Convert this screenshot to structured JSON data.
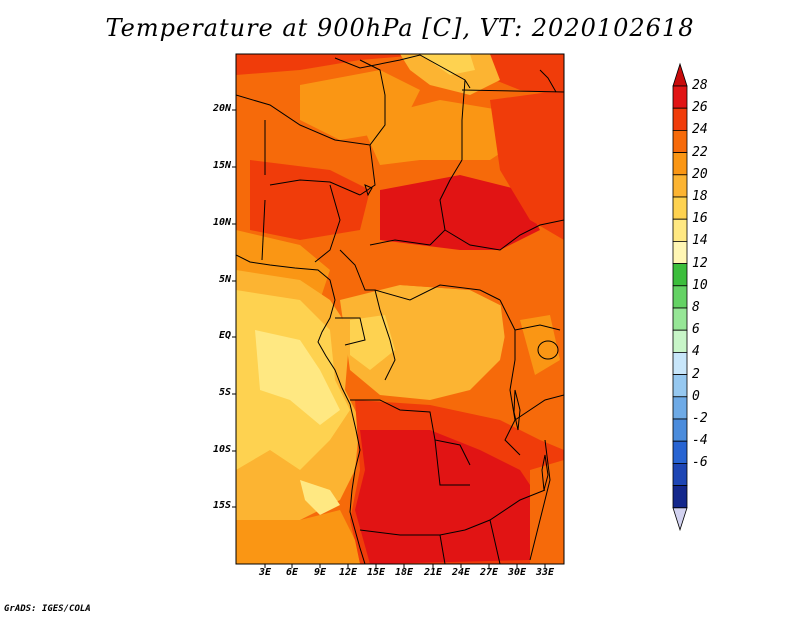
{
  "title": "Temperature at 900hPa [C], VT: 2020102618",
  "credit": "GrADS: IGES/COLA",
  "map": {
    "lat_ticks": [
      "20N",
      "15N",
      "10N",
      "5N",
      "EQ",
      "5S",
      "10S",
      "15S"
    ],
    "lon_ticks": [
      "3E",
      "6E",
      "9E",
      "12E",
      "15E",
      "18E",
      "21E",
      "24E",
      "27E",
      "30E",
      "33E"
    ],
    "lon_range": [
      0,
      35
    ],
    "lat_range": [
      -20,
      25
    ]
  },
  "colorbar": {
    "levels": [
      "28",
      "26",
      "24",
      "22",
      "20",
      "18",
      "16",
      "14",
      "12",
      "10",
      "8",
      "6",
      "4",
      "2",
      "0",
      "-2",
      "-4",
      "-6"
    ],
    "colors": [
      "#e11414",
      "#f03c0a",
      "#f66a0a",
      "#fa9614",
      "#fcb432",
      "#fed250",
      "#ffe882",
      "#fff6b4",
      "#3cbe3c",
      "#64d264",
      "#96e696",
      "#c8f5c8",
      "#c8e6fa",
      "#96c8f0",
      "#6eaae6",
      "#4b8cdc",
      "#2864d2",
      "#1e46b4",
      "#14288c",
      "#0a0a64"
    ],
    "top_arrow_color": "#c80a0a",
    "bottom_arrow_color": "#d2d2f0"
  }
}
